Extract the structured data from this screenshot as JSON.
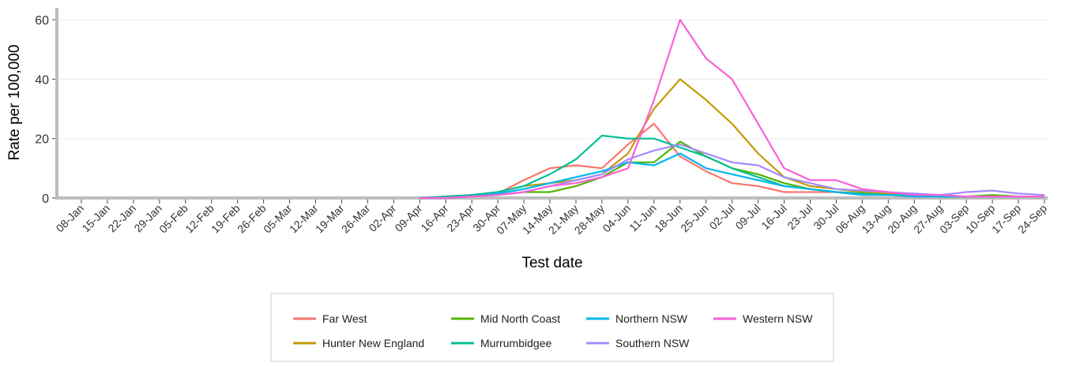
{
  "chart_data": {
    "type": "line",
    "x_label": "Test date",
    "y_label": "Rate per 100,000",
    "categories": [
      "08-Jan",
      "15-Jan",
      "22-Jan",
      "29-Jan",
      "05-Feb",
      "12-Feb",
      "19-Feb",
      "26-Feb",
      "05-Mar",
      "12-Mar",
      "19-Mar",
      "26-Mar",
      "02-Apr",
      "09-Apr",
      "16-Apr",
      "23-Apr",
      "30-Apr",
      "07-May",
      "14-May",
      "21-May",
      "28-May",
      "04-Jun",
      "11-Jun",
      "18-Jun",
      "25-Jun",
      "02-Jul",
      "09-Jul",
      "16-Jul",
      "23-Jul",
      "30-Jul",
      "06-Aug",
      "13-Aug",
      "20-Aug",
      "27-Aug",
      "03-Sep",
      "10-Sep",
      "17-Sep",
      "24-Sep"
    ],
    "series": [
      {
        "name": "Far West",
        "color": "#f8766d",
        "values": [
          null,
          null,
          null,
          null,
          null,
          null,
          null,
          null,
          null,
          null,
          null,
          null,
          null,
          0,
          0.5,
          1,
          1.5,
          6,
          10,
          11,
          10,
          18,
          25,
          14,
          9,
          5,
          4,
          2,
          2,
          2,
          1,
          1,
          0.5,
          0.5,
          0.5,
          0.5,
          0.5,
          0.5
        ]
      },
      {
        "name": "Hunter New England",
        "color": "#c49a00",
        "values": [
          null,
          null,
          null,
          null,
          null,
          null,
          null,
          null,
          null,
          null,
          null,
          null,
          null,
          0,
          0.5,
          1,
          2,
          4,
          5,
          6,
          8,
          15,
          30,
          40,
          33,
          25,
          15,
          7,
          4,
          3,
          2,
          1.5,
          1,
          0.5,
          0.5,
          0.5,
          0.5,
          0.5
        ]
      },
      {
        "name": "Mid North Coast",
        "color": "#53b400",
        "values": [
          null,
          null,
          null,
          null,
          null,
          null,
          null,
          null,
          null,
          null,
          null,
          null,
          null,
          0,
          0,
          0.5,
          1,
          2,
          2,
          4,
          7,
          12,
          12,
          19,
          14,
          10,
          8,
          5,
          3,
          2,
          1.5,
          1,
          1,
          0.5,
          0.5,
          1,
          0.5,
          0.5
        ]
      },
      {
        "name": "Murrumbidgee",
        "color": "#00c094",
        "values": [
          null,
          null,
          null,
          null,
          null,
          null,
          null,
          null,
          null,
          null,
          null,
          null,
          null,
          0,
          0.5,
          1,
          2,
          4,
          8,
          13,
          21,
          20,
          20,
          17,
          14,
          10,
          7,
          4,
          3,
          2,
          1.5,
          1,
          1,
          0.5,
          0.5,
          0.5,
          0.5,
          0.5
        ]
      },
      {
        "name": "Northern NSW",
        "color": "#00b6eb",
        "values": [
          null,
          null,
          null,
          null,
          null,
          null,
          null,
          null,
          null,
          null,
          null,
          null,
          null,
          0,
          0,
          0.5,
          1.5,
          3,
          5,
          7,
          9,
          12,
          11,
          15,
          10,
          8,
          6,
          4,
          3,
          2,
          1,
          1,
          0.5,
          0.5,
          0.5,
          0.5,
          0.5,
          0.5
        ]
      },
      {
        "name": "Southern NSW",
        "color": "#a58aff",
        "values": [
          null,
          null,
          null,
          null,
          null,
          null,
          null,
          null,
          null,
          null,
          null,
          null,
          null,
          0,
          0,
          0.5,
          1,
          2,
          4,
          6,
          8,
          13,
          16,
          18,
          15,
          12,
          11,
          7,
          5,
          3,
          2.5,
          2,
          1.5,
          1,
          2,
          2.5,
          1.5,
          1
        ]
      },
      {
        "name": "Western NSW",
        "color": "#fb61d7",
        "values": [
          null,
          null,
          null,
          null,
          null,
          null,
          null,
          null,
          null,
          null,
          null,
          null,
          null,
          0,
          0,
          0.5,
          1,
          2,
          4,
          5,
          7,
          10,
          33,
          60,
          47,
          40,
          25,
          10,
          6,
          6,
          3,
          2,
          1,
          1,
          0.5,
          0.5,
          0.5,
          0.5
        ]
      }
    ],
    "ylim": [
      0,
      64
    ],
    "yticks": [
      0,
      20,
      40,
      60
    ],
    "grid": true
  }
}
